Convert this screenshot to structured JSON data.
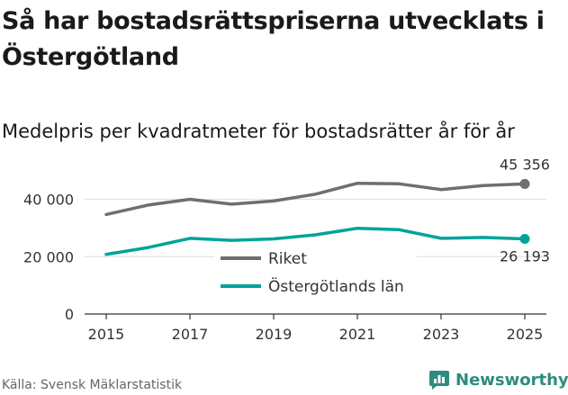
{
  "header": {
    "title": "Så har bostadsrättspriserna utvecklats i Östergötland",
    "subtitle": "Medelpris per kvadratmeter för bostadsrätter år för år"
  },
  "footer": {
    "source": "Källa: Svensk Mäklarstatistik",
    "brand": "Newsworthy"
  },
  "chart_data": {
    "type": "line",
    "title": "Så har bostadsrättspriserna utvecklats i Östergötland",
    "subtitle": "Medelpris per kvadratmeter för bostadsrätter år för år",
    "xlabel": "",
    "ylabel": "",
    "x": [
      2015,
      2016,
      2017,
      2018,
      2019,
      2020,
      2021,
      2022,
      2023,
      2024,
      2025
    ],
    "xticks": [
      2015,
      2017,
      2019,
      2021,
      2023,
      2025
    ],
    "yticks": [
      0,
      20000,
      40000
    ],
    "ytick_labels": [
      "0",
      "20 000",
      "40 000"
    ],
    "xlim": [
      2015,
      2025
    ],
    "ylim": [
      0,
      48000
    ],
    "grid": "horizontal",
    "legend_position": "center",
    "series": [
      {
        "name": "Riket",
        "color": "#6e6e73",
        "values": [
          34700,
          38000,
          40000,
          38300,
          39400,
          41800,
          45600,
          45400,
          43400,
          44800,
          45356
        ],
        "end_label": "45 356"
      },
      {
        "name": "Östergötlands län",
        "color": "#00a39a",
        "values": [
          20800,
          23200,
          26400,
          25700,
          26200,
          27600,
          29900,
          29400,
          26400,
          26700,
          26193
        ],
        "end_label": "26 193"
      }
    ]
  }
}
